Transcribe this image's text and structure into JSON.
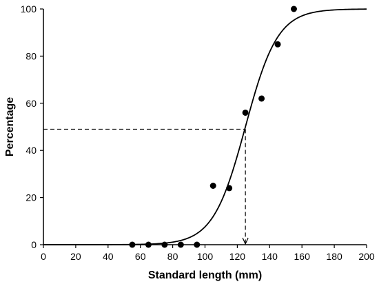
{
  "chart_data": {
    "type": "scatter",
    "title": "",
    "xlabel": "Standard length (mm)",
    "ylabel": "Percentage",
    "xlim": [
      0,
      200
    ],
    "ylim": [
      0,
      100
    ],
    "x_ticks": [
      0,
      20,
      40,
      60,
      80,
      100,
      120,
      140,
      160,
      180,
      200
    ],
    "y_ticks": [
      0,
      20,
      40,
      60,
      80,
      100
    ],
    "grid": false,
    "legend": "none",
    "points": {
      "x": [
        55,
        65,
        75,
        85,
        95,
        105,
        115,
        125,
        135,
        145,
        155
      ],
      "y": [
        0,
        0,
        0,
        0,
        0,
        25,
        24,
        56,
        62,
        85,
        100
      ]
    },
    "fitted_curve": {
      "kind": "logistic",
      "midpoint": 125,
      "slope": 0.1
    },
    "reference_line": {
      "x": 125,
      "y": 49,
      "style": "dashed",
      "arrow_to_x_axis": true
    },
    "colors": {
      "points": "#000000",
      "curve": "#000000",
      "axes": "#000000"
    }
  }
}
